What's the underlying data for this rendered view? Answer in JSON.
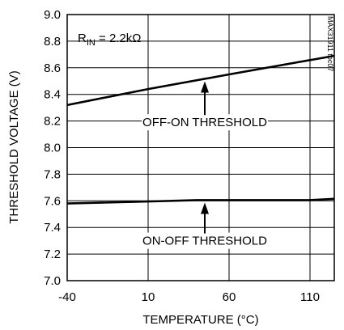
{
  "chart_data": {
    "type": "line",
    "title": "",
    "xlabel": "TEMPERATURE (°C)",
    "ylabel": "THRESHOLD VOLTAGE (V)",
    "xlim": [
      -40,
      125
    ],
    "ylim": [
      7.0,
      9.0
    ],
    "xticks": [
      -40,
      10,
      60,
      110
    ],
    "yticks": [
      7.0,
      7.2,
      7.4,
      7.6,
      7.8,
      8.0,
      8.2,
      8.4,
      8.6,
      8.8,
      9.0
    ],
    "grid": true,
    "condition_label": "R",
    "condition_subscript": "IN",
    "condition_value": " = 2.2kΩ",
    "part_label": "MAX31911 toc07",
    "series": [
      {
        "name": "OFF-ON THRESHOLD",
        "x": [
          -40,
          10,
          60,
          125
        ],
        "y": [
          8.32,
          8.44,
          8.55,
          8.69
        ]
      },
      {
        "name": "ON-OFF THRESHOLD",
        "x": [
          -40,
          10,
          40,
          110,
          125
        ],
        "y": [
          7.58,
          7.595,
          7.605,
          7.605,
          7.615
        ]
      }
    ],
    "annotations": [
      {
        "text": "OFF-ON THRESHOLD",
        "series": 0,
        "arrow_x": 45
      },
      {
        "text": "ON-OFF THRESHOLD",
        "series": 1,
        "arrow_x": 45
      }
    ]
  }
}
